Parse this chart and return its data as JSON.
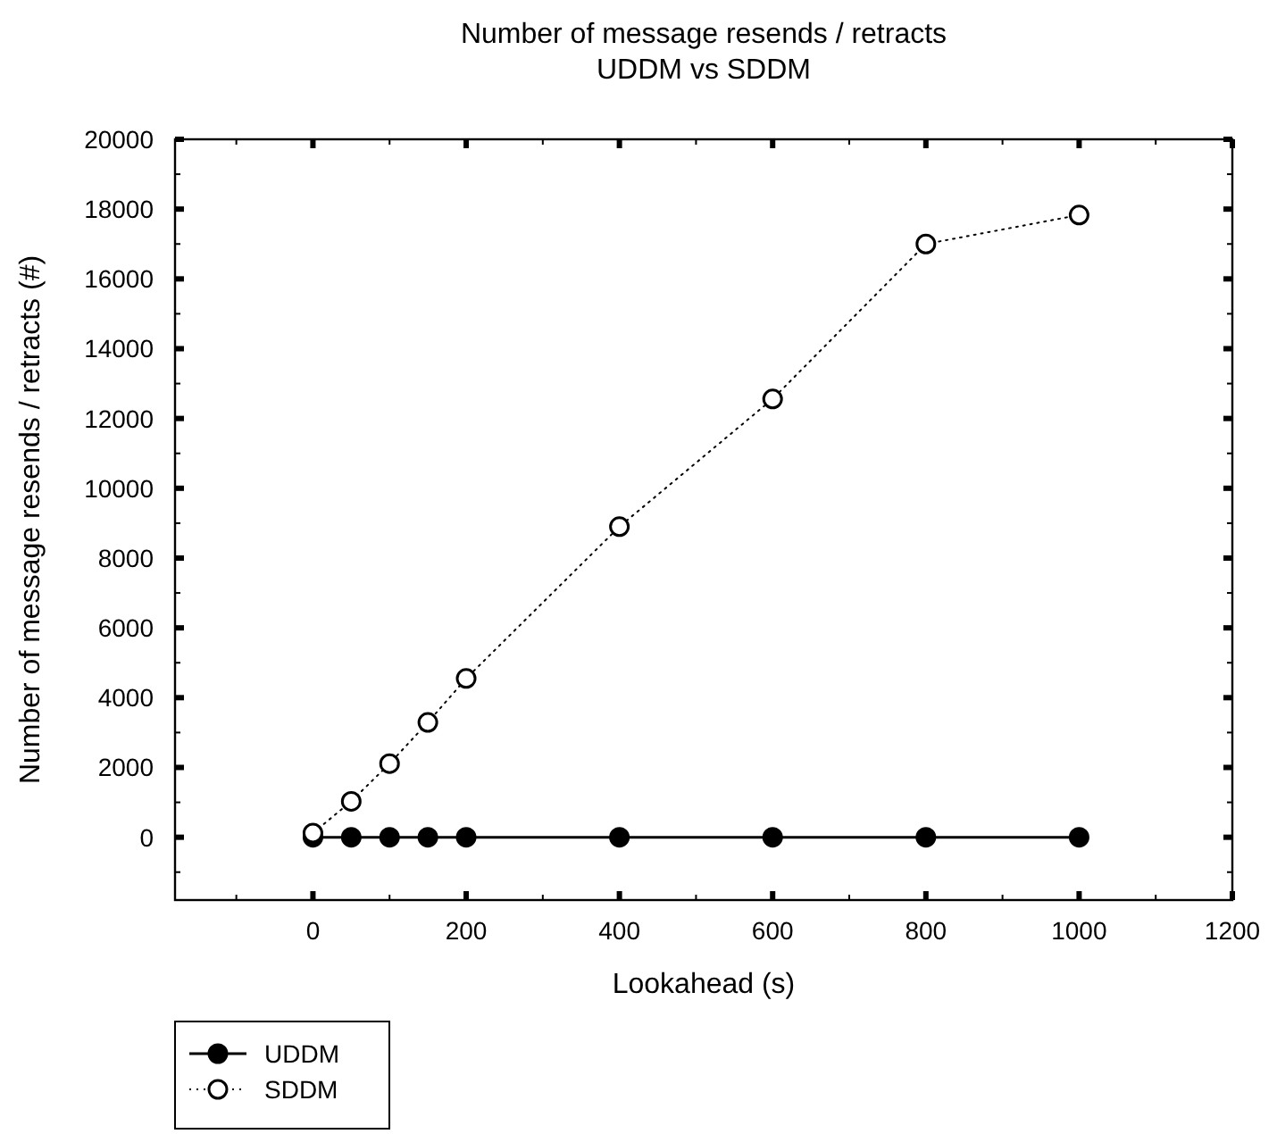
{
  "chart_data": {
    "type": "line",
    "title": "Number of message resends / retracts",
    "subtitle": "UDDM vs SDDM",
    "xlabel": "Lookahead (s)",
    "ylabel": "Number of message resends / retracts (#)",
    "x": [
      0,
      50,
      100,
      150,
      200,
      400,
      600,
      800,
      1000
    ],
    "series": [
      {
        "name": "UDDM",
        "color": "#000000",
        "values": [
          0,
          0,
          0,
          0,
          0,
          0,
          0,
          0,
          0
        ],
        "marker": "circle",
        "line_style": "solid"
      },
      {
        "name": "SDDM",
        "color": "#000000",
        "values": [
          120,
          1030,
          2110,
          3290,
          4550,
          8900,
          12560,
          17000,
          17830
        ],
        "marker": "circle",
        "line_style": "dotted"
      }
    ],
    "xlim": [
      -180,
      1200
    ],
    "xticks": [
      0,
      200,
      400,
      600,
      800,
      1000,
      1200
    ],
    "ylim": [
      -1800,
      20000
    ],
    "yticks": [
      0,
      2000,
      4000,
      6000,
      8000,
      10000,
      12000,
      14000,
      16000,
      18000,
      20000
    ],
    "grid": false,
    "legend": "bottom left"
  }
}
